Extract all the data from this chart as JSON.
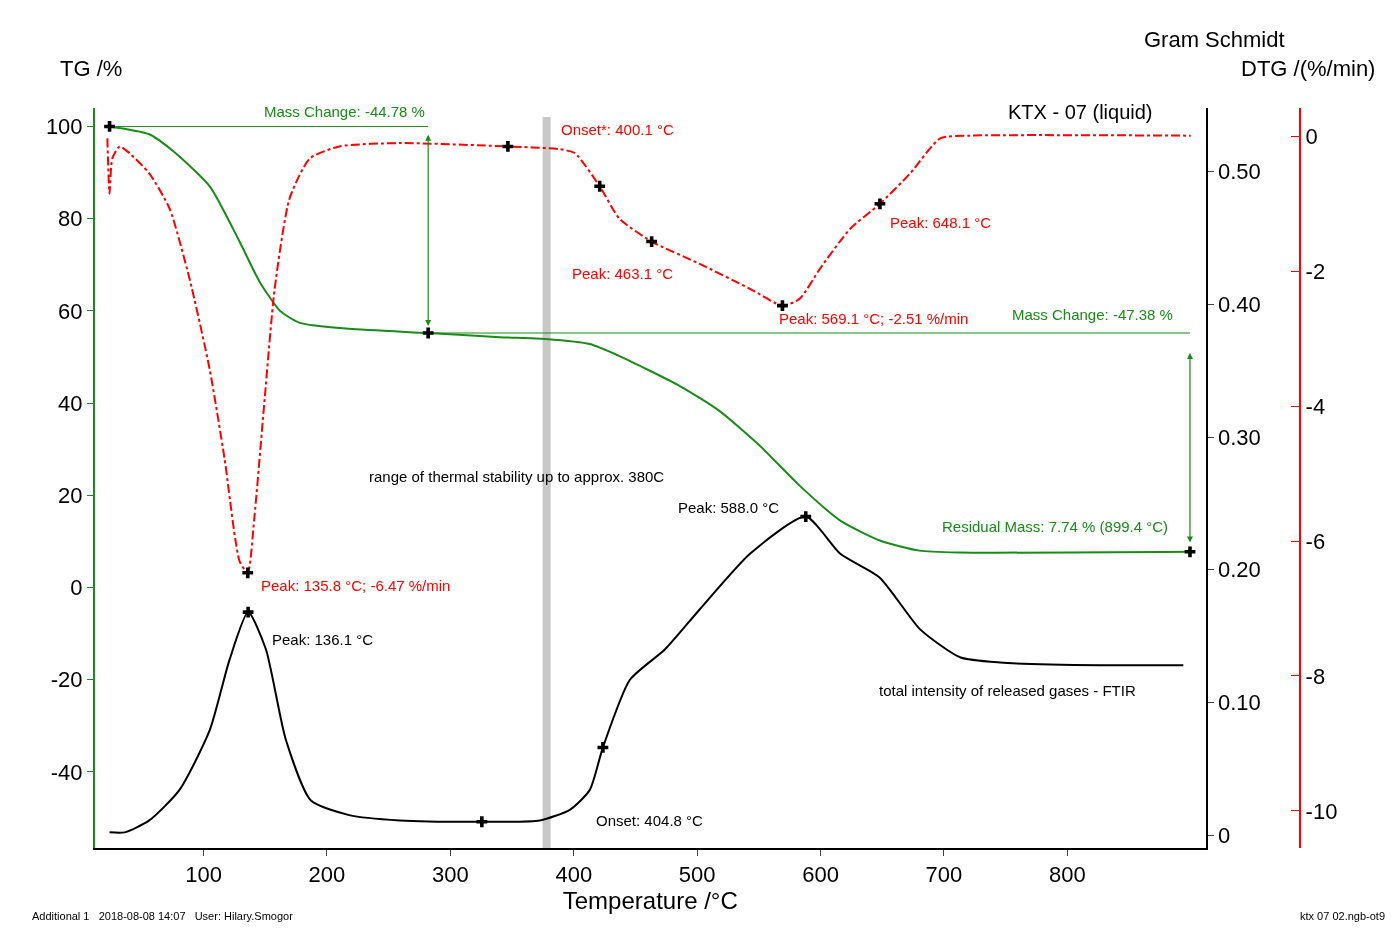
{
  "chart_data": {
    "type": "line",
    "title": "KTX - 07 (liquid)",
    "xlabel": "Temperature /°C",
    "ylabel": "TG /%",
    "y2label": "Gram Schmidt",
    "y3label": "DTG /(%/min)",
    "xlim": [
      12,
      912
    ],
    "xticks": [
      100,
      200,
      300,
      400,
      500,
      600,
      700,
      800
    ],
    "ylim": [
      -56.5,
      104
    ],
    "yticks": [
      -40,
      -20,
      0,
      20,
      40,
      60,
      80,
      100
    ],
    "y2lim": [
      -0.0098,
      0.548
    ],
    "y2ticks": [
      0,
      {
        "value": 0.1,
        "label": "0.10"
      },
      {
        "value": 0.2,
        "label": "0.20"
      },
      {
        "value": 0.3,
        "label": "0.30"
      },
      {
        "value": 0.4,
        "label": "0.40"
      },
      {
        "value": 0.5,
        "label": "0.50"
      }
    ],
    "y3lim": [
      -10.55,
      0.42
    ],
    "y3ticks": [
      -10,
      -8,
      -6,
      -4,
      -2,
      0
    ],
    "grid": false,
    "series": [
      {
        "color": "#1a8a1a",
        "x": [
          23.8,
          56,
          75.5,
          105,
          129,
          145,
          162,
          178,
          218,
          282,
          340,
          377,
          413,
          437,
          486,
          518,
          551,
          583,
          616,
          648,
          680,
          713,
          899.4
        ],
        "values": [
          100,
          98.3,
          94.6,
          87,
          75.1,
          66.5,
          60,
          57.4,
          56.1,
          55.2,
          54.3,
          53.9,
          52.8,
          50.2,
          43.7,
          38.3,
          30.7,
          22.1,
          14.5,
          10.2,
          8,
          7.6,
          7.74
        ]
      },
      {
        "axis": "y3",
        "color": "#ff0000",
        "line_style": "dashdot",
        "x": [
          22,
          23.8,
          26,
          32,
          40,
          56,
          72.4,
          88.6,
          104.9,
          117,
          129.2,
          135.8,
          141,
          149.5,
          157.6,
          169.7,
          186,
          210,
          259,
          346.6,
          388.7,
          400.9,
          421,
          437,
          463.1,
          502,
          542.8,
          569.1,
          583,
          599.6,
          624,
          648.1,
          672.6,
          697,
          721,
          900
        ],
        "values": [
          -0.03,
          -0.85,
          -0.33,
          -0.15,
          -0.25,
          -0.55,
          -1.07,
          -2.11,
          -3.45,
          -4.78,
          -6.3,
          -6.47,
          -5.68,
          -3.89,
          -2.26,
          -0.92,
          -0.33,
          -0.15,
          -0.1,
          -0.15,
          -0.19,
          -0.25,
          -0.74,
          -1.22,
          -1.56,
          -1.89,
          -2.26,
          -2.51,
          -2.41,
          -1.96,
          -1.37,
          -1,
          -0.55,
          -0.03,
          0.01,
          0.01
        ]
      },
      {
        "axis": "y2",
        "color": "#000000",
        "x": [
          23.8,
          36,
          56,
          80.5,
          105,
          121,
          136.1,
          150.5,
          166.6,
          187,
          218,
          259,
          325.5,
          372.5,
          396.8,
          413,
          423.6,
          445.5,
          474,
          502,
          542.8,
          588,
          616,
          648,
          680.7,
          713,
          745.6,
          826.7,
          894
        ],
        "values": [
          0.002,
          0.002,
          0.011,
          0.034,
          0.079,
          0.132,
          0.168,
          0.14,
          0.072,
          0.026,
          0.015,
          0.011,
          0.01,
          0.011,
          0.019,
          0.034,
          0.066,
          0.117,
          0.14,
          0.17,
          0.212,
          0.24,
          0.212,
          0.194,
          0.155,
          0.134,
          0.13,
          0.128,
          0.128
        ]
      },
      {
        "color": "#1a8a1a",
        "x": [
          23.8,
          282
        ],
        "values": [
          100,
          100
        ]
      },
      {
        "color": "#1a8a1a",
        "x": [
          282,
          899.4
        ],
        "values": [
          55.2,
          55.2
        ]
      },
      {
        "type": "scatter",
        "marker": "cross",
        "color": "#000000",
        "x": [
          23.8,
          282,
          899.4
        ],
        "values": [
          100,
          55.2,
          7.74
        ]
      },
      {
        "type": "scatter",
        "marker": "cross",
        "axis": "y3",
        "color": "#000000",
        "x": [
          135.8,
          346.6,
          421,
          463.1,
          569.1,
          648.1
        ],
        "values": [
          -6.47,
          -0.15,
          -0.74,
          -1.56,
          -2.51,
          -1
        ]
      },
      {
        "type": "scatter",
        "marker": "cross",
        "axis": "y2",
        "color": "#000000",
        "x": [
          136.1,
          325.5,
          423.6,
          588
        ],
        "values": [
          0.168,
          0.01,
          0.066,
          0.24
        ]
      }
    ],
    "ref_lines": [
      {
        "axis": "x",
        "value": 378,
        "color": "#c8c8c8"
      }
    ],
    "annotations": [
      "Mass Change: -44.78 %",
      "Onset*: 400.1 °C",
      "Peak: 463.1 °C",
      "Peak: 648.1 °C",
      "Peak: 569.1 °C; -2.51 %/min",
      "Mass Change: -47.38 %",
      "range of thermal stability up to approx. 380C",
      "Peak: 588.0 °C",
      "Residual Mass: 7.74 % (899.4 °C)",
      "Peak: 135.8 °C; -6.47 %/min",
      "Peak: 136.1 °C",
      "total intensity of released gases - FTIR",
      "Onset: 404.8 °C",
      "Additional 1   2018-08-08 14:07   User: Hilary.Smogor",
      "ktx 07 02.ngb-ot9"
    ]
  }
}
